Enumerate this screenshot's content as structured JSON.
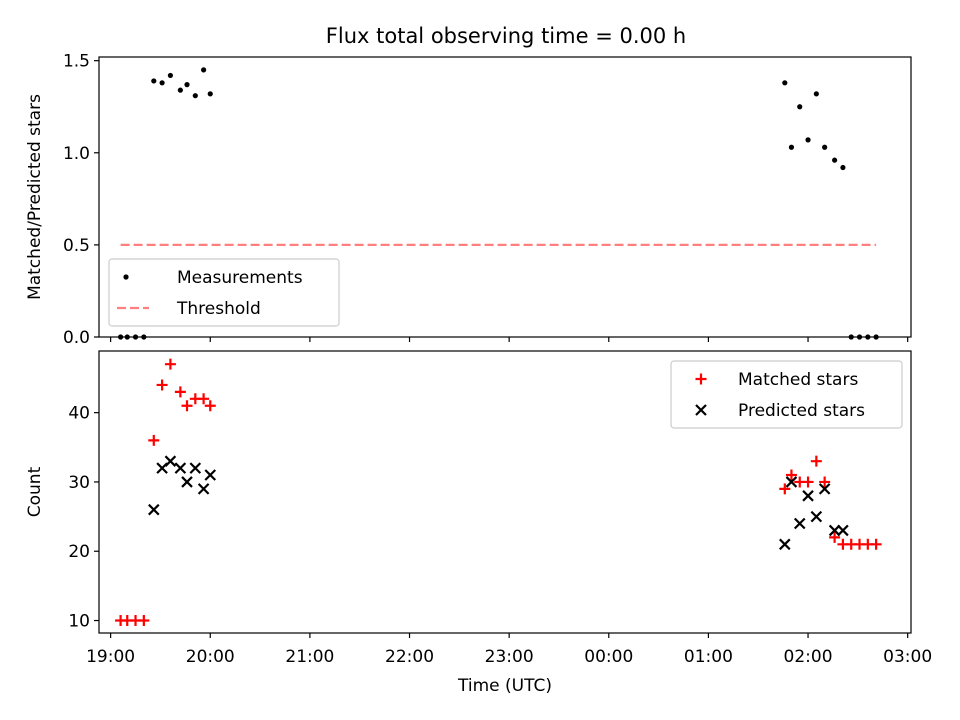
{
  "figure": {
    "title": "Flux total observing time = 0.00 h"
  },
  "chart_data": [
    {
      "type": "scatter",
      "ylabel": "Matched/Predicted stars",
      "ylim": [
        0,
        1.52
      ],
      "yticks": [
        "0.0",
        "0.5",
        "1.0",
        "1.5"
      ],
      "xlim": [
        "18:53",
        "03:02"
      ],
      "legend_position": "lower-left",
      "series": [
        {
          "name": "Measurements",
          "marker": "dot",
          "color": "#000000",
          "points": [
            [
              "19:06",
              0.0
            ],
            [
              "19:10",
              0.0
            ],
            [
              "19:15",
              0.0
            ],
            [
              "19:20",
              0.0
            ],
            [
              "19:26",
              1.39
            ],
            [
              "19:31",
              1.38
            ],
            [
              "19:36",
              1.42
            ],
            [
              "19:42",
              1.34
            ],
            [
              "19:46",
              1.37
            ],
            [
              "19:51",
              1.31
            ],
            [
              "19:56",
              1.45
            ],
            [
              "20:00",
              1.32
            ],
            [
              "01:46",
              1.38
            ],
            [
              "01:50",
              1.03
            ],
            [
              "01:55",
              1.25
            ],
            [
              "02:00",
              1.07
            ],
            [
              "02:05",
              1.32
            ],
            [
              "02:10",
              1.03
            ],
            [
              "02:16",
              0.96
            ],
            [
              "02:21",
              0.92
            ],
            [
              "02:26",
              0.0
            ],
            [
              "02:31",
              0.0
            ],
            [
              "02:36",
              0.0
            ],
            [
              "02:41",
              0.0
            ]
          ]
        },
        {
          "name": "Threshold",
          "line": "dashed",
          "color": "#ff7f7f",
          "points": [
            [
              "19:06",
              0.5
            ],
            [
              "02:41",
              0.5
            ]
          ]
        }
      ]
    },
    {
      "type": "scatter",
      "ylabel": "Count",
      "xlabel": "Time (UTC)",
      "ylim": [
        8.2,
        48.9
      ],
      "yticks": [
        "10",
        "20",
        "30",
        "40"
      ],
      "xlim": [
        "18:53",
        "03:02"
      ],
      "xticks": [
        "19:00",
        "20:00",
        "21:00",
        "22:00",
        "23:00",
        "00:00",
        "01:00",
        "02:00",
        "03:00"
      ],
      "legend_position": "upper-right",
      "series": [
        {
          "name": "Matched stars",
          "marker": "plus",
          "color": "#ff0000",
          "points": [
            [
              "19:06",
              10
            ],
            [
              "19:10",
              10
            ],
            [
              "19:15",
              10
            ],
            [
              "19:20",
              10
            ],
            [
              "19:26",
              36
            ],
            [
              "19:31",
              44
            ],
            [
              "19:36",
              47
            ],
            [
              "19:42",
              43
            ],
            [
              "19:46",
              41
            ],
            [
              "19:51",
              42
            ],
            [
              "19:56",
              42
            ],
            [
              "20:00",
              41
            ],
            [
              "01:46",
              29
            ],
            [
              "01:50",
              31
            ],
            [
              "01:55",
              30
            ],
            [
              "02:00",
              30
            ],
            [
              "02:05",
              33
            ],
            [
              "02:10",
              30
            ],
            [
              "02:16",
              22
            ],
            [
              "02:21",
              21
            ],
            [
              "02:26",
              21
            ],
            [
              "02:31",
              21
            ],
            [
              "02:36",
              21
            ],
            [
              "02:41",
              21
            ]
          ]
        },
        {
          "name": "Predicted stars",
          "marker": "x",
          "color": "#000000",
          "points": [
            [
              "19:26",
              26
            ],
            [
              "19:31",
              32
            ],
            [
              "19:36",
              33
            ],
            [
              "19:42",
              32
            ],
            [
              "19:46",
              30
            ],
            [
              "19:51",
              32
            ],
            [
              "19:56",
              29
            ],
            [
              "20:00",
              31
            ],
            [
              "01:46",
              21
            ],
            [
              "01:50",
              30
            ],
            [
              "01:55",
              24
            ],
            [
              "02:00",
              28
            ],
            [
              "02:05",
              25
            ],
            [
              "02:10",
              29
            ],
            [
              "02:16",
              23
            ],
            [
              "02:21",
              23
            ]
          ]
        }
      ]
    }
  ]
}
